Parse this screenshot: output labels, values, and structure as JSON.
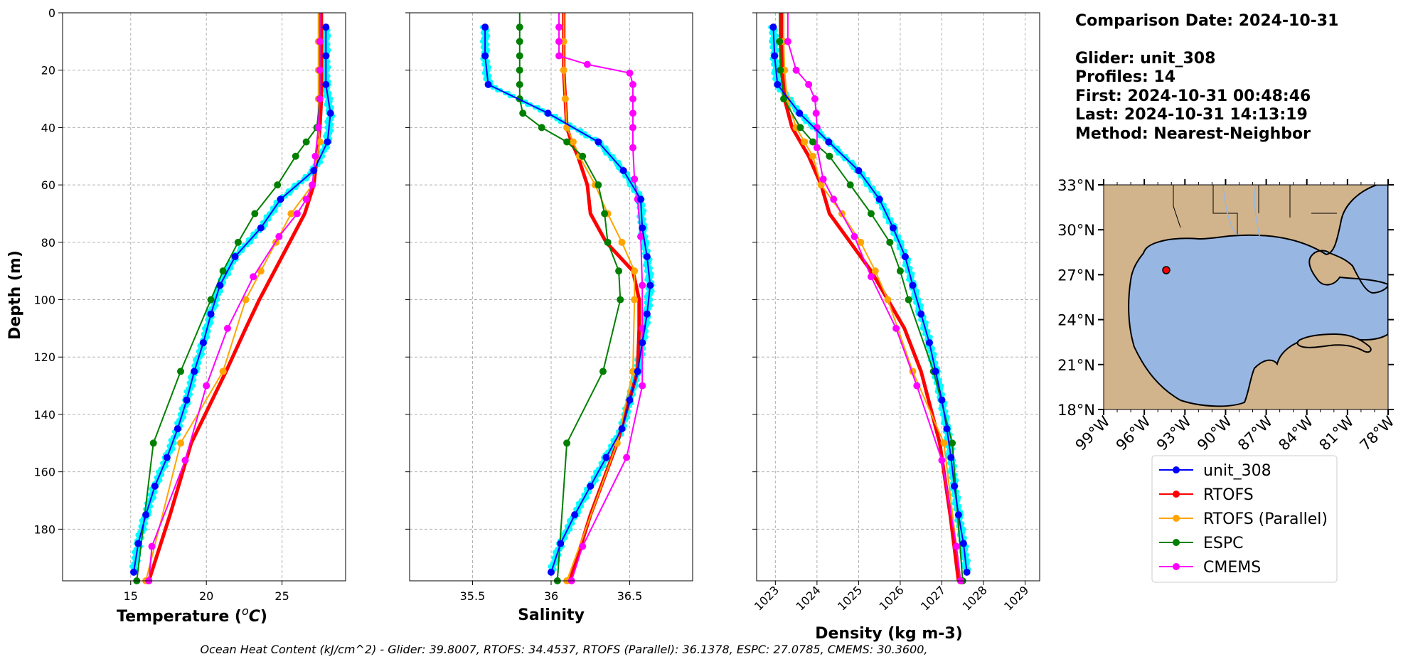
{
  "info": {
    "comparison_date": "Comparison Date: 2024-10-31",
    "glider": "Glider: unit_308",
    "profiles": "Profiles: 14",
    "first": "First: 2024-10-31 00:48:46",
    "last": "Last: 2024-10-31 14:13:19",
    "method": "Method: Nearest-Neighbor"
  },
  "footer": "Ocean Heat Content (kJ/cm^2) - Glider: 39.8007,  RTOFS: 34.4537,  RTOFS (Parallel): 36.1378,  ESPC: 27.0785,  CMEMS: 30.3600,",
  "colors": {
    "glider": "#0000ff",
    "glider_raw": "#00ffff",
    "rtofs": "#ff0000",
    "rtofs_parallel": "#ffa500",
    "espc": "#008000",
    "cmems": "#ff00ff",
    "land": "#d2b48c",
    "ocean": "#98b6e2"
  },
  "legend": [
    {
      "label": "unit_308",
      "color": "#0000ff"
    },
    {
      "label": "RTOFS",
      "color": "#ff0000"
    },
    {
      "label": "RTOFS (Parallel)",
      "color": "#ffa500"
    },
    {
      "label": "ESPC",
      "color": "#008000"
    },
    {
      "label": "CMEMS",
      "color": "#ff00ff"
    }
  ],
  "map": {
    "lat_ticks": [
      "33°N",
      "30°N",
      "27°N",
      "24°N",
      "21°N",
      "18°N"
    ],
    "lon_ticks": [
      "99°W",
      "96°W",
      "93°W",
      "90°W",
      "87°W",
      "84°W",
      "81°W",
      "78°W"
    ],
    "extent": {
      "lon": [
        -99,
        -78
      ],
      "lat": [
        18,
        33
      ]
    },
    "glider_position": {
      "lon": -94.5,
      "lat": 27.5
    }
  },
  "chart_data": [
    {
      "type": "line",
      "xlabel": "Temperature (°C)",
      "ylabel": "Depth (m)",
      "xlim": [
        10.5,
        29.2
      ],
      "ylim": [
        198,
        0
      ],
      "xticks": [
        15,
        20,
        25
      ],
      "yticks": [
        0,
        20,
        40,
        60,
        80,
        100,
        120,
        140,
        160,
        180
      ],
      "grid": true,
      "series": [
        {
          "name": "unit_308",
          "depth": [
            5,
            15,
            25,
            35,
            45,
            55,
            65,
            75,
            85,
            95,
            105,
            115,
            125,
            135,
            145,
            155,
            165,
            175,
            185,
            195
          ],
          "values": [
            27.9,
            27.9,
            27.9,
            28.2,
            28.0,
            27.1,
            24.9,
            23.6,
            21.9,
            20.9,
            20.3,
            19.8,
            19.2,
            18.7,
            18.1,
            17.4,
            16.6,
            16.0,
            15.5,
            15.2
          ]
        },
        {
          "name": "RTOFS",
          "depth": [
            0,
            10,
            20,
            30,
            40,
            50,
            60,
            70,
            80,
            90,
            100,
            110,
            125,
            150,
            175,
            198
          ],
          "values": [
            27.6,
            27.6,
            27.6,
            27.6,
            27.5,
            27.3,
            27.1,
            26.5,
            25.5,
            24.5,
            23.5,
            22.6,
            21.3,
            19.0,
            17.6,
            16.2
          ]
        },
        {
          "name": "RTOFS (Parallel)",
          "depth": [
            0,
            10,
            20,
            30,
            40,
            45,
            50,
            60,
            70,
            80,
            90,
            100,
            125,
            150,
            198
          ],
          "values": [
            27.4,
            27.4,
            27.4,
            27.4,
            27.4,
            27.5,
            27.3,
            27.0,
            25.6,
            24.6,
            23.6,
            22.6,
            21.1,
            18.3,
            16.0
          ]
        },
        {
          "name": "ESPC",
          "depth": [
            0,
            10,
            20,
            30,
            40,
            45,
            50,
            60,
            70,
            80,
            90,
            100,
            125,
            150,
            198
          ],
          "values": [
            27.5,
            27.5,
            27.5,
            27.5,
            27.3,
            26.6,
            25.9,
            24.7,
            23.2,
            22.1,
            21.1,
            20.3,
            18.3,
            16.5,
            15.4
          ]
        },
        {
          "name": "CMEMS",
          "depth": [
            0,
            10,
            20,
            30,
            40,
            50,
            60,
            65,
            70,
            78,
            92,
            110,
            130,
            156,
            186,
            198
          ],
          "values": [
            27.5,
            27.5,
            27.5,
            27.5,
            27.4,
            27.2,
            27.0,
            26.6,
            26.0,
            24.8,
            23.1,
            21.4,
            20.0,
            18.6,
            16.4,
            16.2
          ]
        }
      ]
    },
    {
      "type": "line",
      "xlabel": "Salinity",
      "ylabel": "",
      "xlim": [
        35.1,
        36.9
      ],
      "ylim": [
        198,
        0
      ],
      "xticks": [
        35.5,
        36.0,
        36.5
      ],
      "grid": true,
      "series": [
        {
          "name": "unit_308",
          "depth": [
            5,
            15,
            25,
            35,
            45,
            55,
            65,
            75,
            85,
            95,
            105,
            115,
            125,
            135,
            145,
            155,
            165,
            175,
            185,
            195
          ],
          "values": [
            35.58,
            35.58,
            35.6,
            35.98,
            36.3,
            36.46,
            36.57,
            36.58,
            36.61,
            36.63,
            36.61,
            36.58,
            36.55,
            36.5,
            36.45,
            36.35,
            36.25,
            36.15,
            36.06,
            36.0
          ]
        },
        {
          "name": "RTOFS",
          "depth": [
            0,
            10,
            20,
            30,
            40,
            45,
            50,
            60,
            70,
            80,
            90,
            100,
            110,
            125,
            150,
            175,
            198
          ],
          "values": [
            36.08,
            36.08,
            36.08,
            36.09,
            36.1,
            36.13,
            36.17,
            36.23,
            36.25,
            36.35,
            36.52,
            36.56,
            36.56,
            36.55,
            36.42,
            36.25,
            36.12
          ]
        },
        {
          "name": "RTOFS (Parallel)",
          "depth": [
            0,
            10,
            20,
            30,
            40,
            45,
            50,
            60,
            70,
            80,
            90,
            100,
            125,
            150,
            198
          ],
          "values": [
            36.08,
            36.08,
            36.08,
            36.09,
            36.1,
            36.14,
            36.18,
            36.28,
            36.36,
            36.45,
            36.53,
            36.53,
            36.52,
            36.42,
            36.1
          ]
        },
        {
          "name": "ESPC",
          "depth": [
            0,
            5,
            10,
            15,
            20,
            25,
            30,
            35,
            40,
            45,
            50,
            60,
            70,
            80,
            90,
            100,
            125,
            150,
            198
          ],
          "values": [
            35.8,
            35.8,
            35.8,
            35.8,
            35.8,
            35.8,
            35.8,
            35.82,
            35.94,
            36.1,
            36.2,
            36.3,
            36.34,
            36.36,
            36.43,
            36.44,
            36.33,
            36.1,
            36.04
          ]
        },
        {
          "name": "CMEMS",
          "depth": [
            0,
            5,
            10,
            15,
            18,
            21,
            25,
            30,
            35,
            40,
            47,
            58,
            65,
            78,
            95,
            110,
            130,
            155,
            186,
            198
          ],
          "values": [
            36.05,
            36.05,
            36.05,
            36.05,
            36.23,
            36.5,
            36.52,
            36.52,
            36.52,
            36.52,
            36.52,
            36.53,
            36.55,
            36.57,
            36.58,
            36.58,
            36.58,
            36.48,
            36.2,
            36.13
          ]
        }
      ]
    },
    {
      "type": "line",
      "xlabel": "Density (kg m-3)",
      "ylabel": "",
      "xlim": [
        1022.55,
        1029.35
      ],
      "ylim": [
        198,
        0
      ],
      "xticks": [
        1023,
        1024,
        1025,
        1026,
        1027,
        1028,
        1029
      ],
      "grid": true,
      "series": [
        {
          "name": "unit_308",
          "depth": [
            5,
            15,
            25,
            35,
            45,
            55,
            65,
            75,
            85,
            95,
            105,
            115,
            125,
            135,
            145,
            155,
            165,
            175,
            185,
            195
          ],
          "values": [
            1022.95,
            1022.98,
            1023.05,
            1023.58,
            1024.28,
            1025.0,
            1025.5,
            1025.83,
            1026.12,
            1026.3,
            1026.5,
            1026.7,
            1026.85,
            1027.0,
            1027.12,
            1027.22,
            1027.3,
            1027.4,
            1027.52,
            1027.6
          ]
        },
        {
          "name": "RTOFS",
          "depth": [
            0,
            10,
            20,
            30,
            40,
            50,
            60,
            70,
            80,
            90,
            100,
            110,
            125,
            150,
            175,
            198
          ],
          "values": [
            1023.15,
            1023.15,
            1023.18,
            1023.22,
            1023.4,
            1023.8,
            1024.1,
            1024.3,
            1024.8,
            1025.3,
            1025.7,
            1026.1,
            1026.5,
            1026.95,
            1027.2,
            1027.4
          ]
        },
        {
          "name": "RTOFS (Parallel)",
          "depth": [
            0,
            10,
            20,
            30,
            40,
            45,
            50,
            60,
            70,
            80,
            90,
            100,
            125,
            150,
            198
          ],
          "values": [
            1023.2,
            1023.2,
            1023.22,
            1023.28,
            1023.5,
            1023.7,
            1023.9,
            1024.1,
            1024.6,
            1025.05,
            1025.4,
            1025.7,
            1026.3,
            1027.05,
            1027.45
          ]
        },
        {
          "name": "ESPC",
          "depth": [
            0,
            10,
            20,
            30,
            40,
            45,
            50,
            60,
            70,
            80,
            90,
            100,
            125,
            150,
            198
          ],
          "values": [
            1023.1,
            1023.1,
            1023.12,
            1023.2,
            1023.6,
            1023.9,
            1024.3,
            1024.8,
            1025.3,
            1025.75,
            1026.0,
            1026.2,
            1026.8,
            1027.25,
            1027.5
          ]
        },
        {
          "name": "CMEMS",
          "depth": [
            0,
            10,
            20,
            25,
            30,
            35,
            40,
            47,
            58,
            65,
            78,
            92,
            110,
            130,
            156,
            186,
            198
          ],
          "values": [
            1023.3,
            1023.3,
            1023.5,
            1023.8,
            1023.95,
            1023.98,
            1024.0,
            1024.0,
            1024.15,
            1024.4,
            1024.9,
            1025.3,
            1025.9,
            1026.4,
            1027.0,
            1027.35,
            1027.45
          ]
        }
      ]
    }
  ]
}
